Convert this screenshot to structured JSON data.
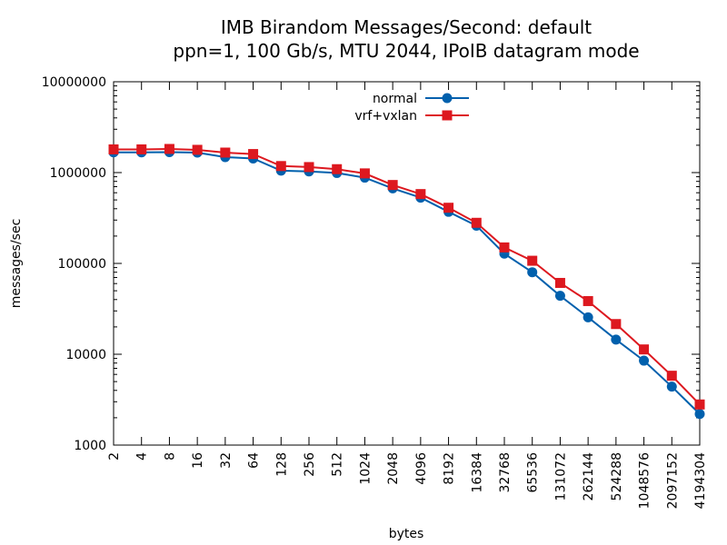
{
  "chart_data": {
    "type": "line",
    "title": "IMB Birandom Messages/Second: default",
    "subtitle": "ppn=1, 100 Gb/s, MTU 2044, IPoIB datagram mode",
    "xlabel": "bytes",
    "ylabel": "messages/sec",
    "x_scale": "log2",
    "y_scale": "log10",
    "xlim": [
      2,
      4194304
    ],
    "ylim": [
      1000,
      10000000
    ],
    "grid": false,
    "legend_position": "top-center",
    "x": [
      2,
      4,
      8,
      16,
      32,
      64,
      128,
      256,
      512,
      1024,
      2048,
      4096,
      8192,
      16384,
      32768,
      65536,
      131072,
      262144,
      524288,
      1048576,
      2097152,
      4194304
    ],
    "x_tick_labels": [
      "2",
      "4",
      "8",
      "16",
      "32",
      "64",
      "128",
      "256",
      "512",
      "1024",
      "2048",
      "4096",
      "8192",
      "16384",
      "32768",
      "65536",
      "131072",
      "262144",
      "524288",
      "1048576",
      "2097152",
      "4194304"
    ],
    "y_tick_labels": [
      "1000",
      "10000",
      "100000",
      "1000000",
      "10000000"
    ],
    "y_ticks": [
      1000,
      10000,
      100000,
      1000000,
      10000000
    ],
    "series": [
      {
        "name": "normal",
        "color": "#0060ad",
        "marker": "circle",
        "values": [
          1670000,
          1670000,
          1680000,
          1660000,
          1480000,
          1430000,
          1050000,
          1030000,
          990000,
          880000,
          670000,
          530000,
          370000,
          260000,
          128000,
          80000,
          44000,
          25500,
          14500,
          8500,
          4400,
          2200
        ]
      },
      {
        "name": "vrf+vxlan",
        "color": "#dd181f",
        "marker": "square",
        "values": [
          1800000,
          1800000,
          1820000,
          1780000,
          1660000,
          1600000,
          1180000,
          1150000,
          1090000,
          980000,
          730000,
          580000,
          410000,
          280000,
          150000,
          107000,
          61000,
          38500,
          21500,
          11300,
          5800,
          2800
        ]
      }
    ]
  }
}
